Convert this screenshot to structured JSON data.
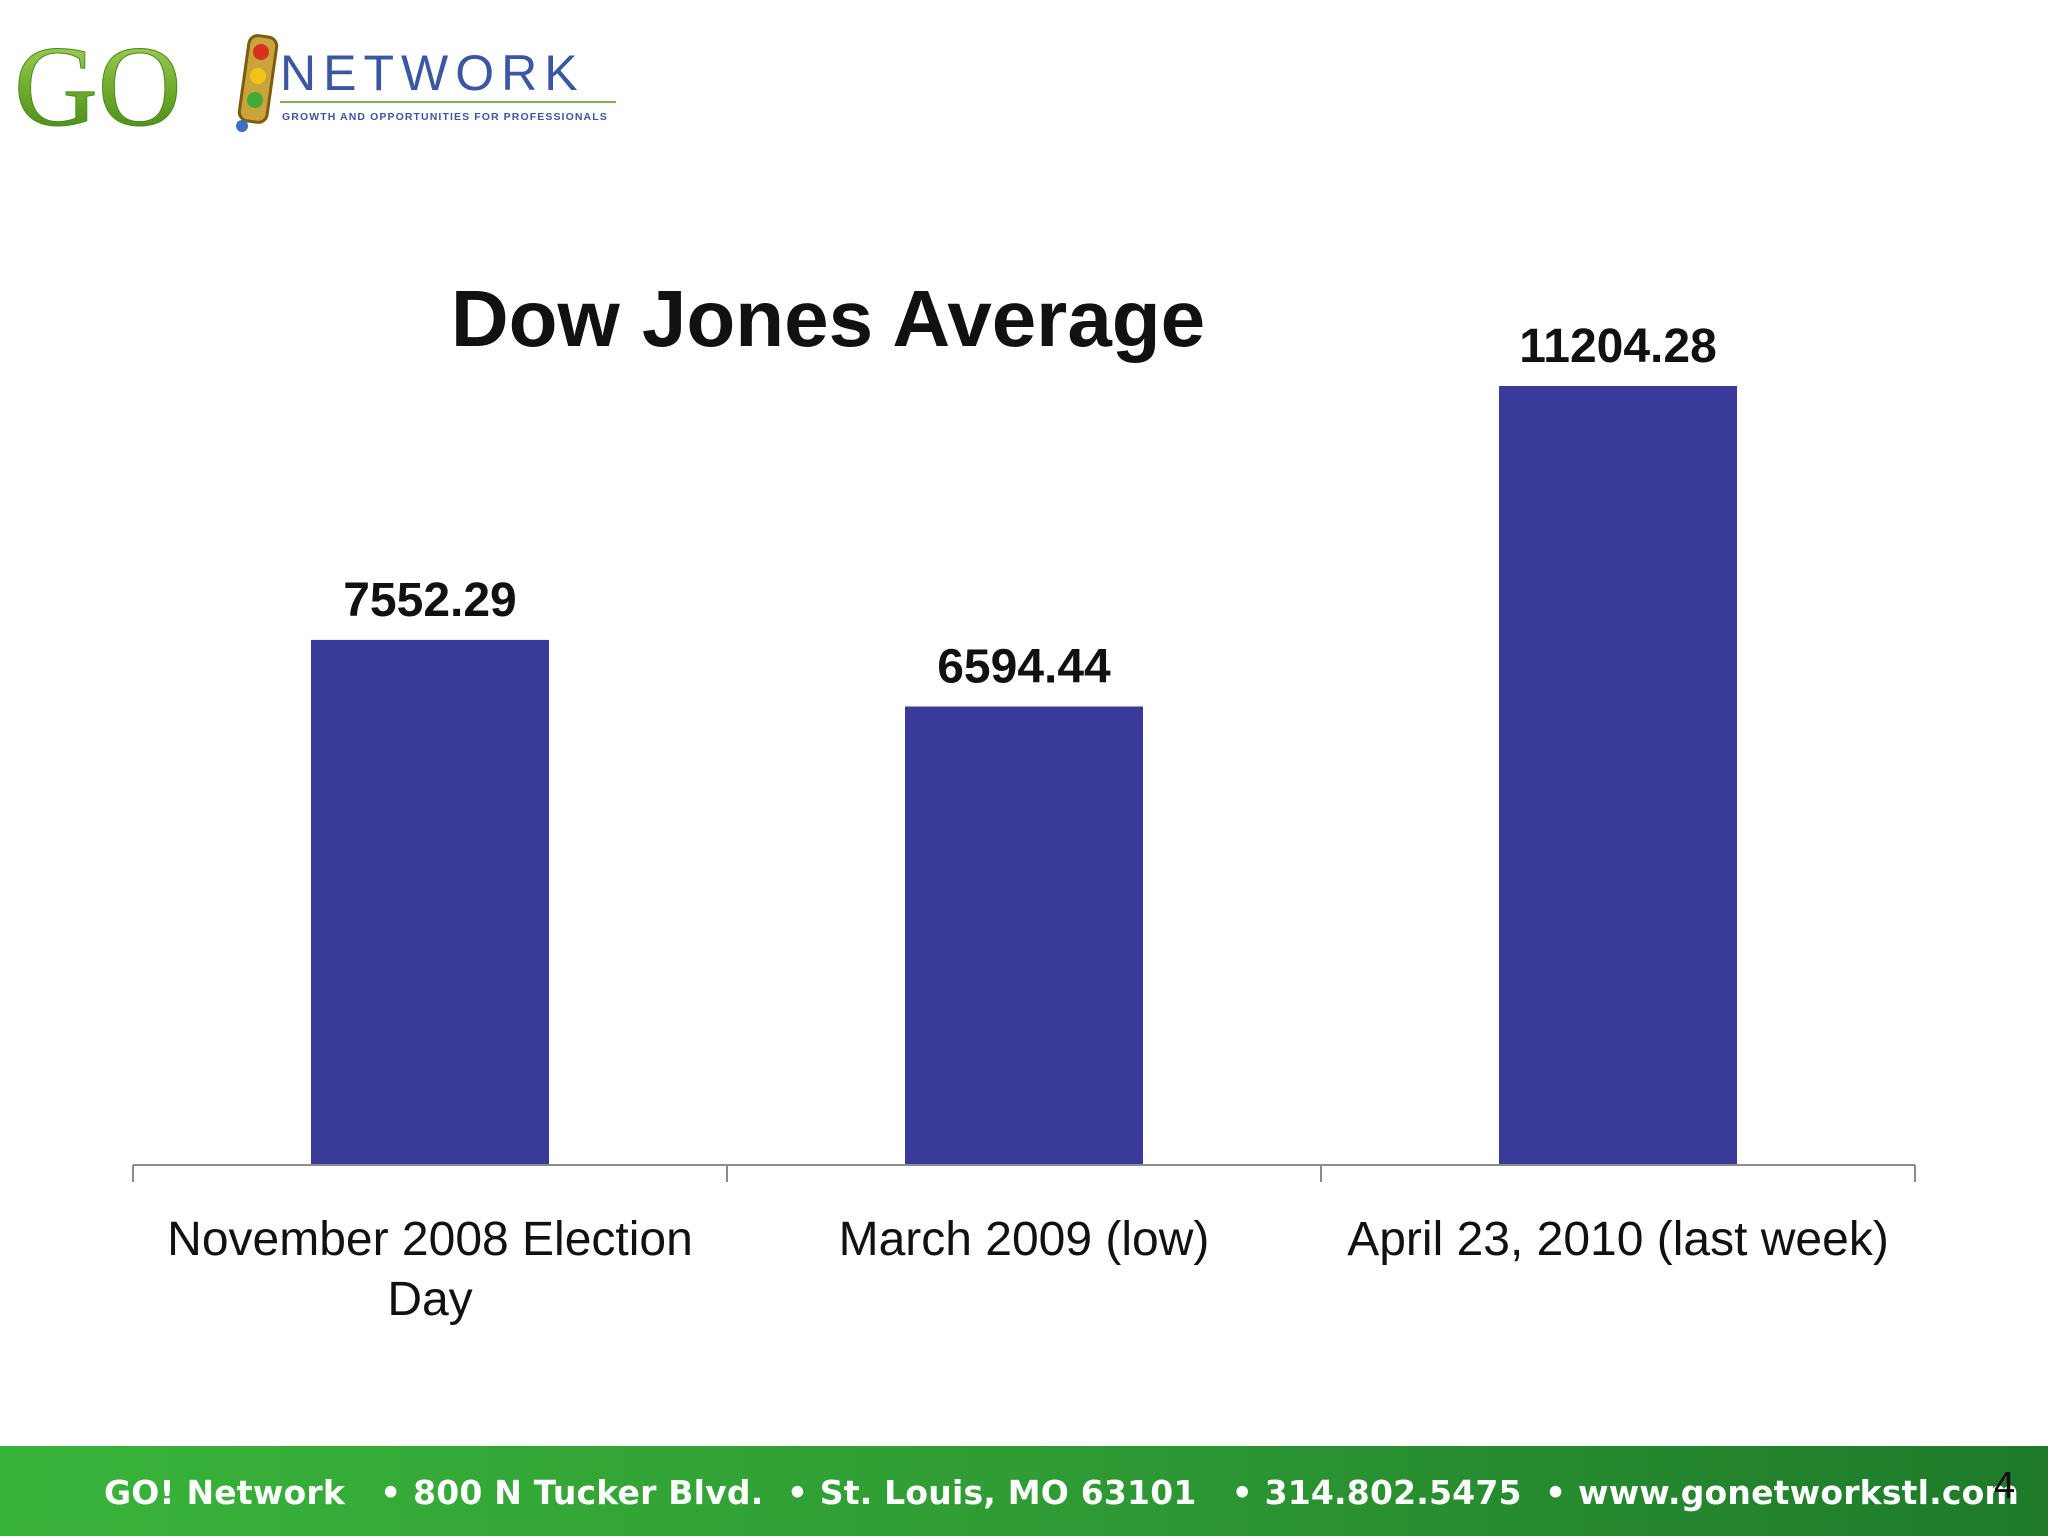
{
  "logo": {
    "main": "GO",
    "network": "NETWORK",
    "tagline": "GROWTH AND OPPORTUNITIES FOR PROFESSIONALS"
  },
  "chart_data": {
    "type": "bar",
    "title": "Dow Jones Average",
    "categories": [
      [
        "November 2008 Election",
        "Day"
      ],
      [
        "March 2009 (low)"
      ],
      [
        "April 23, 2010 (last week)"
      ]
    ],
    "values": [
      7552.29,
      6594.44,
      11204.28
    ],
    "value_labels": [
      "7552.29",
      "6594.44",
      "11204.28"
    ],
    "ylim": [
      0,
      12000
    ],
    "grid": false,
    "legend": "none",
    "bar_color": "#3a3a9b"
  },
  "footer": {
    "text": "GO! Network   • 800 N Tucker Blvd.  • St. Louis, MO 63101   • 314.802.5475  • www.gonetworkstl.com",
    "page_number": "4"
  },
  "colors": {
    "footer_green": "#2f9c34",
    "logo_green": "#5aa329",
    "logo_blue": "#3b56a3"
  }
}
